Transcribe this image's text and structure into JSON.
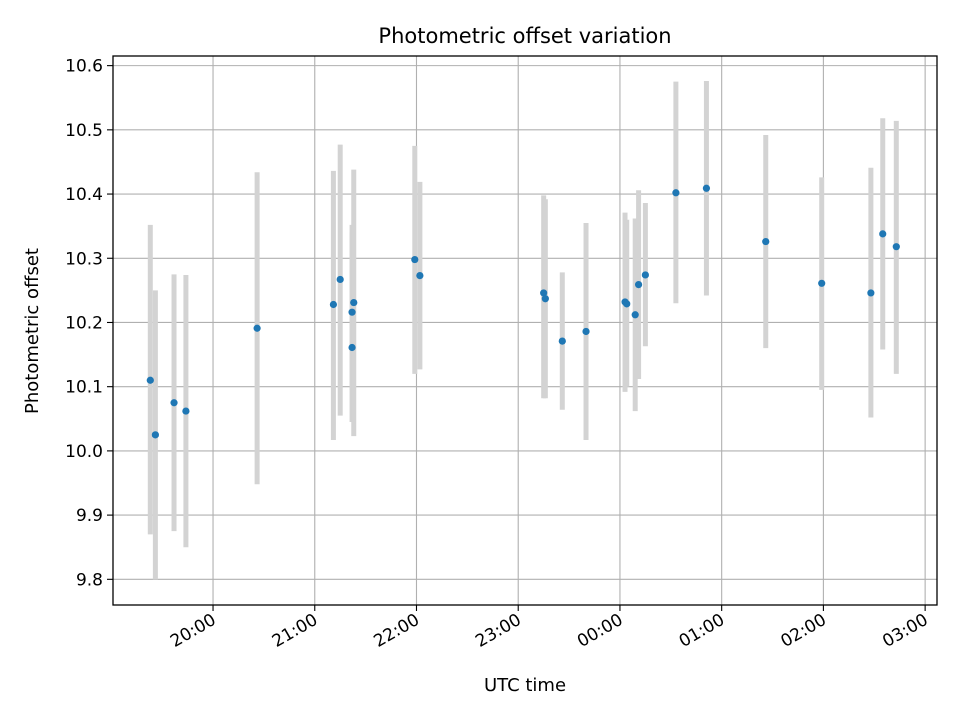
{
  "chart_data": {
    "type": "scatter",
    "title": "Photometric offset variation",
    "xlabel": "UTC time",
    "ylabel": "Photometric offset",
    "x_unit": "UTC hours (continuing past midnight)",
    "xlim": [
      "19:01",
      "03:07"
    ],
    "ylim": [
      9.76,
      10.615
    ],
    "x_ticks": [
      "20:00",
      "21:00",
      "22:00",
      "23:00",
      "00:00",
      "01:00",
      "02:00",
      "03:00"
    ],
    "y_ticks": [
      "9.8",
      "9.9",
      "10.0",
      "10.1",
      "10.2",
      "10.3",
      "10.4",
      "10.5",
      "10.6"
    ],
    "y_tick_values": [
      9.8,
      9.9,
      10.0,
      10.1,
      10.2,
      10.3,
      10.4,
      10.5,
      10.6
    ],
    "grid": true,
    "marker_color": "#1f77b4",
    "errorbar_color": "#d3d3d3",
    "points": [
      {
        "x": "19:23",
        "y": 10.11,
        "lo": 9.87,
        "hi": 10.352
      },
      {
        "x": "19:26",
        "y": 10.025,
        "lo": 9.8,
        "hi": 10.25
      },
      {
        "x": "19:37",
        "y": 10.075,
        "lo": 9.875,
        "hi": 10.275
      },
      {
        "x": "19:44",
        "y": 10.062,
        "lo": 9.85,
        "hi": 10.274
      },
      {
        "x": "20:26",
        "y": 10.191,
        "lo": 9.948,
        "hi": 10.434
      },
      {
        "x": "21:11",
        "y": 10.228,
        "lo": 10.017,
        "hi": 10.436
      },
      {
        "x": "21:15",
        "y": 10.267,
        "lo": 10.055,
        "hi": 10.477
      },
      {
        "x": "21:22",
        "y": 10.161,
        "lo": 10.045,
        "hi": 10.352
      },
      {
        "x": "21:22",
        "y": 10.216,
        "lo": 10.095,
        "hi": 10.34
      },
      {
        "x": "21:23",
        "y": 10.231,
        "lo": 10.023,
        "hi": 10.438
      },
      {
        "x": "21:59",
        "y": 10.298,
        "lo": 10.12,
        "hi": 10.475
      },
      {
        "x": "22:02",
        "y": 10.273,
        "lo": 10.127,
        "hi": 10.419
      },
      {
        "x": "23:15",
        "y": 10.246,
        "lo": 10.082,
        "hi": 10.398
      },
      {
        "x": "23:16",
        "y": 10.237,
        "lo": 10.082,
        "hi": 10.392
      },
      {
        "x": "23:26",
        "y": 10.171,
        "lo": 10.064,
        "hi": 10.278
      },
      {
        "x": "23:40",
        "y": 10.186,
        "lo": 10.017,
        "hi": 10.355
      },
      {
        "x": "00:03",
        "y": 10.232,
        "lo": 10.092,
        "hi": 10.371
      },
      {
        "x": "00:04",
        "y": 10.229,
        "lo": 10.1,
        "hi": 10.36
      },
      {
        "x": "00:09",
        "y": 10.212,
        "lo": 10.062,
        "hi": 10.362
      },
      {
        "x": "00:11",
        "y": 10.259,
        "lo": 10.112,
        "hi": 10.406
      },
      {
        "x": "00:15",
        "y": 10.274,
        "lo": 10.163,
        "hi": 10.386
      },
      {
        "x": "00:33",
        "y": 10.402,
        "lo": 10.23,
        "hi": 10.575
      },
      {
        "x": "00:51",
        "y": 10.409,
        "lo": 10.242,
        "hi": 10.576
      },
      {
        "x": "01:26",
        "y": 10.326,
        "lo": 10.16,
        "hi": 10.492
      },
      {
        "x": "01:59",
        "y": 10.261,
        "lo": 10.095,
        "hi": 10.426
      },
      {
        "x": "02:28",
        "y": 10.246,
        "lo": 10.052,
        "hi": 10.441
      },
      {
        "x": "02:35",
        "y": 10.338,
        "lo": 10.158,
        "hi": 10.518
      },
      {
        "x": "02:43",
        "y": 10.318,
        "lo": 10.12,
        "hi": 10.514
      }
    ]
  }
}
